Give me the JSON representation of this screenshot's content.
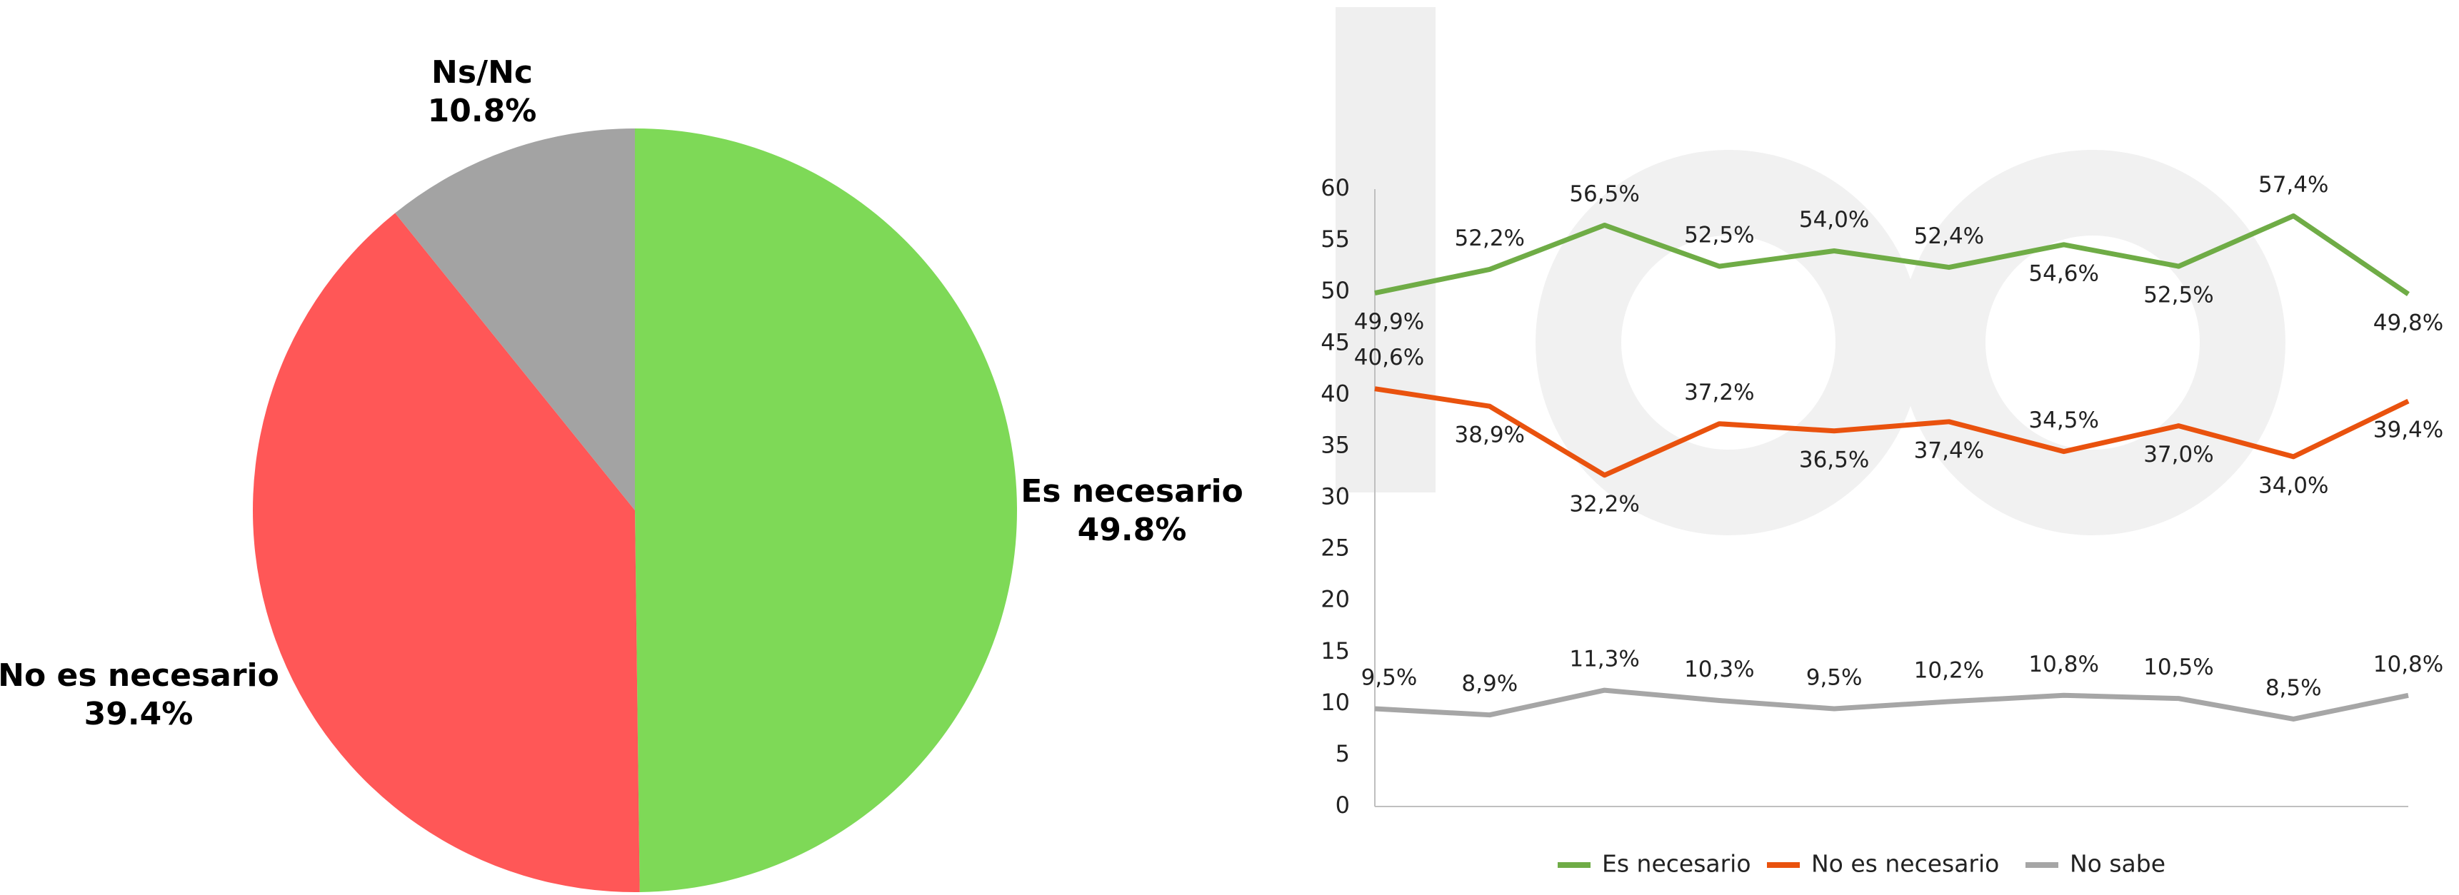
{
  "chart_data": [
    {
      "type": "pie",
      "categories": [
        "Es necesario",
        "No es necesario",
        "Ns/Nc"
      ],
      "values": [
        49.8,
        39.4,
        10.8
      ],
      "value_labels": [
        "49.8%",
        "39.4%",
        "10.8%"
      ],
      "colors": [
        "#7ed957",
        "#ff5757",
        "#a3a3a3"
      ]
    },
    {
      "type": "line",
      "categories": [
        null,
        null,
        null,
        null,
        null,
        null,
        null,
        null,
        null,
        null
      ],
      "ylim": [
        0,
        60
      ],
      "yticks": [
        0,
        5,
        10,
        15,
        20,
        25,
        30,
        35,
        40,
        45,
        50,
        55,
        60
      ],
      "legend": "bottom",
      "series": [
        {
          "name": "Es necesario",
          "color": "#6fac46",
          "values": [
            49.9,
            52.2,
            56.5,
            52.5,
            54.0,
            52.4,
            54.6,
            52.5,
            57.4,
            49.8
          ],
          "value_labels": [
            "49,9%",
            "52,2%",
            "56,5%",
            "52,5%",
            "54,0%",
            "52,4%",
            "54,6%",
            "52,5%",
            "57,4%",
            "49,8%"
          ]
        },
        {
          "name": "No es necesario",
          "color": "#e9520e",
          "values": [
            40.6,
            38.9,
            32.2,
            37.2,
            36.5,
            37.4,
            34.5,
            37.0,
            34.0,
            39.4
          ],
          "value_labels": [
            "40,6%",
            "38,9%",
            "32,2%",
            "37,2%",
            "36,5%",
            "37,4%",
            "34,5%",
            "37,0%",
            "34,0%",
            "39,4%"
          ]
        },
        {
          "name": "No sabe",
          "color": "#a6a6a6",
          "values": [
            9.5,
            8.9,
            11.3,
            10.3,
            9.5,
            10.2,
            10.8,
            10.5,
            8.5,
            10.8
          ],
          "value_labels": [
            "9,5%",
            "8,9%",
            "11,3%",
            "10,3%",
            "9,5%",
            "10,2%",
            "10,8%",
            "10,5%",
            "8,5%",
            "10,8%"
          ]
        }
      ]
    }
  ]
}
